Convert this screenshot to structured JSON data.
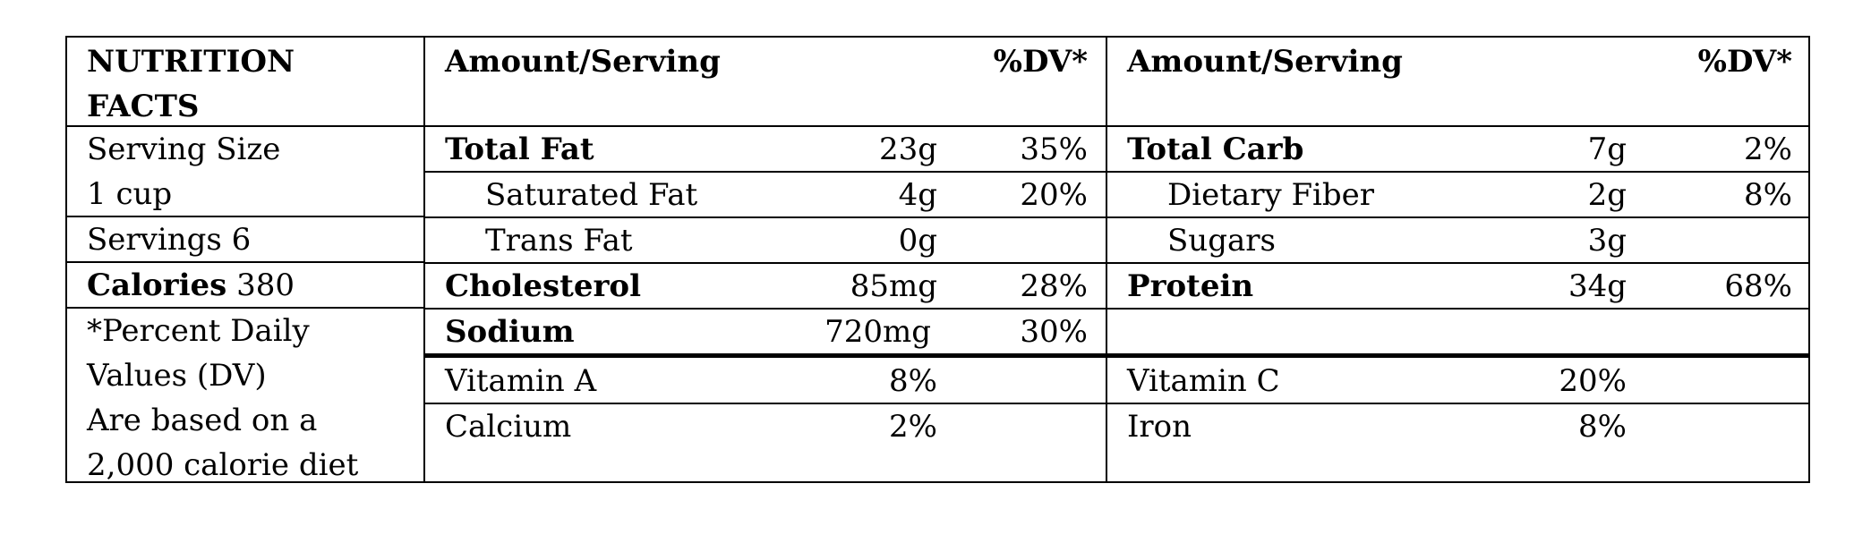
{
  "title": "NUTRITION\nFACTS",
  "title_line1": "NUTRITION",
  "title_line2": "FACTS",
  "header": {
    "amount_serving_left": "Amount/Serving",
    "dv_left": "%DV*",
    "amount_serving_right": "Amount/Serving",
    "dv_right": "%DV*"
  },
  "sidebar": {
    "serving_size_label": "Serving Size",
    "serving_size_value": "1 cup",
    "servings": "Servings 6",
    "calories_label": "Calories",
    "calories_value": "380",
    "footnote_line1": "*Percent Daily",
    "footnote_line2": "Values (DV)",
    "footnote_line3": "Are based on a",
    "footnote_line4": "2,000 calorie diet"
  },
  "left_nutrients": [
    {
      "name": "Total Fat",
      "amount": "23g",
      "dv": "35%"
    },
    {
      "name": "Saturated Fat",
      "amount": "4g",
      "dv": "20%"
    },
    {
      "name": "Trans Fat",
      "amount": "0g",
      "dv": ""
    },
    {
      "name": "Cholesterol",
      "amount": "85mg",
      "dv": "28%"
    },
    {
      "name": "Sodium",
      "amount": "720mg",
      "dv": "30%"
    }
  ],
  "right_nutrients": [
    {
      "name": "Total Carb",
      "amount": "7g",
      "dv": "2%"
    },
    {
      "name": "Dietary Fiber",
      "amount": "2g",
      "dv": "8%"
    },
    {
      "name": "Sugars",
      "amount": "3g",
      "dv": ""
    },
    {
      "name": "Protein",
      "amount": "34g",
      "dv": "68%"
    }
  ],
  "vitamins": {
    "vitamin_a": {
      "name": "Vitamin A",
      "value": "8%"
    },
    "calcium": {
      "name": "Calcium",
      "value": "2%"
    },
    "vitamin_c": {
      "name": "Vitamin C",
      "value": "20%"
    },
    "iron": {
      "name": "Iron",
      "value": "8%"
    }
  }
}
